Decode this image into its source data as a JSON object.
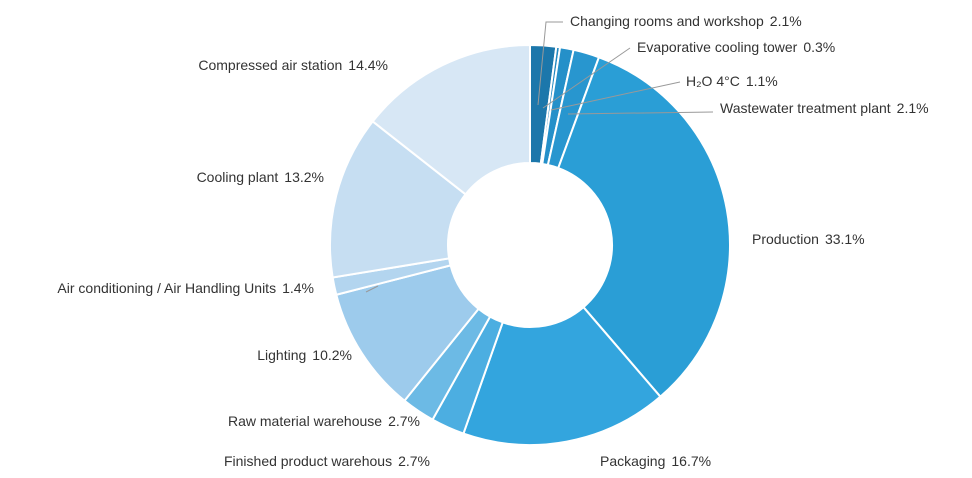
{
  "chart_data": {
    "type": "pie",
    "donut": true,
    "categories": [
      "Changing rooms and workshop",
      "Evaporative cooling tower",
      "H₂O 4°C",
      "Wastewater treatment plant",
      "Production",
      "Packaging",
      "Finished product warehous",
      "Raw material warehouse",
      "Lighting",
      "Air conditioning / Air Handling Units",
      "Cooling plant",
      "Compressed air station"
    ],
    "values": [
      2.1,
      0.3,
      1.1,
      2.1,
      33.1,
      16.7,
      2.7,
      2.7,
      10.2,
      1.4,
      13.2,
      14.4
    ],
    "value_labels": [
      "2.1%",
      "0.3%",
      "1.1%",
      "2.1%",
      "33.1%",
      "16.7%",
      "2.7%",
      "2.7%",
      "10.2%",
      "1.4%",
      "13.2%",
      "14.4%"
    ],
    "colors": [
      "#1c77ab",
      "#2289c2",
      "#2590c9",
      "#2896cf",
      "#2a9ed6",
      "#33a5de",
      "#4caee1",
      "#6cbae5",
      "#9dcbec",
      "#b3d5ef",
      "#c6def2",
      "#d7e7f5"
    ]
  }
}
